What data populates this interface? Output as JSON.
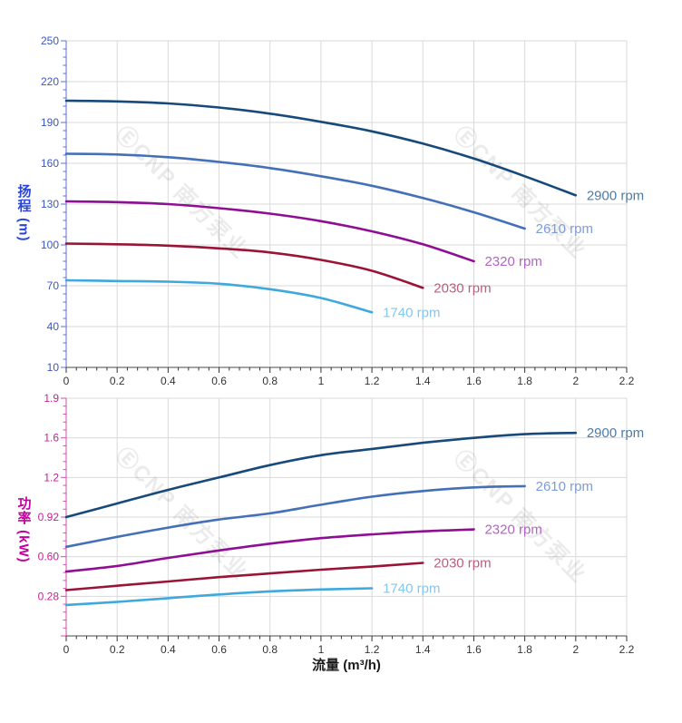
{
  "x_axis": {
    "label": "流量 (m³/h)",
    "min": 0,
    "max": 2.2,
    "major_ticks": [
      {
        "value": 0,
        "label": "0"
      },
      {
        "value": 0.2,
        "label": "0.2"
      },
      {
        "value": 0.4,
        "label": "0.4"
      },
      {
        "value": 0.6,
        "label": "0.6"
      },
      {
        "value": 0.8,
        "label": "0.8"
      },
      {
        "value": 1,
        "label": "1"
      },
      {
        "value": 1.2,
        "label": "1.2"
      },
      {
        "value": 1.4,
        "label": "1.4"
      },
      {
        "value": 1.6,
        "label": "1.6"
      },
      {
        "value": 1.8,
        "label": "1.8"
      },
      {
        "value": 2,
        "label": "2"
      },
      {
        "value": 2.2,
        "label": "2.2"
      }
    ],
    "minor_step": 0.04,
    "axis_color": "#4a4a4a",
    "tick_color": "#333333",
    "tick_label_color": "#333333"
  },
  "watermark": {
    "logo": "Ⓔ",
    "text": "CNP 南方泵业",
    "opacity": 0.1
  },
  "grid_color": "#d9d9d9",
  "chart_data": [
    {
      "type": "line",
      "name": "head-vs-flow",
      "ylabel": "扬程 (m)",
      "ylabel_color": "#2b46d4",
      "axis_color": "#5c6fd0",
      "tick_label_color": "#3a57c4",
      "ylim": [
        10,
        250
      ],
      "y_minor_step": 6,
      "y_major_ticks": [
        {
          "value": 10,
          "label": "10"
        },
        {
          "value": 40,
          "label": "40"
        },
        {
          "value": 70,
          "label": "70"
        },
        {
          "value": 100,
          "label": "100"
        },
        {
          "value": 130,
          "label": "130"
        },
        {
          "value": 160,
          "label": "160"
        },
        {
          "value": 190,
          "label": "190"
        },
        {
          "value": 220,
          "label": "220"
        },
        {
          "value": 250,
          "label": "250"
        }
      ],
      "series": [
        {
          "name": "2900 rpm",
          "color": "#17497a",
          "label_color": "#4d7ca8",
          "x": [
            0,
            0.2,
            0.4,
            0.6,
            0.8,
            1.0,
            1.2,
            1.4,
            1.6,
            1.8,
            2.0
          ],
          "y": [
            206,
            205.5,
            204,
            201,
            196.5,
            190.5,
            183.5,
            174.5,
            163.5,
            150.5,
            136.5
          ]
        },
        {
          "name": "2610 rpm",
          "color": "#4470b8",
          "label_color": "#7e9cd8",
          "x": [
            0,
            0.2,
            0.4,
            0.6,
            0.8,
            1.0,
            1.2,
            1.4,
            1.6,
            1.8
          ],
          "y": [
            167,
            166.5,
            164.5,
            161,
            156.5,
            150.5,
            143.5,
            134.5,
            124,
            112
          ]
        },
        {
          "name": "2320 rpm",
          "color": "#8e0f94",
          "label_color": "#b164c4",
          "x": [
            0,
            0.2,
            0.4,
            0.6,
            0.8,
            1.0,
            1.2,
            1.4,
            1.6
          ],
          "y": [
            132,
            131.5,
            130,
            127,
            123,
            117.5,
            110,
            100.5,
            88
          ]
        },
        {
          "name": "2030 rpm",
          "color": "#9a1535",
          "label_color": "#b8607c",
          "x": [
            0,
            0.2,
            0.4,
            0.6,
            0.8,
            1.0,
            1.2,
            1.4
          ],
          "y": [
            101,
            100.5,
            99.5,
            97.5,
            94.5,
            89,
            81,
            68.5
          ]
        },
        {
          "name": "1740 rpm",
          "color": "#3fa8dd",
          "label_color": "#86c5ec",
          "x": [
            0,
            0.2,
            0.4,
            0.6,
            0.8,
            1.0,
            1.2
          ],
          "y": [
            74,
            73.5,
            73,
            71.5,
            67.5,
            61,
            50.5
          ]
        }
      ]
    },
    {
      "type": "line",
      "name": "power-vs-flow",
      "ylabel": "功率 (kW)",
      "ylabel_color": "#c4009e",
      "axis_color": "#cf4fae",
      "tick_label_color": "#c81e96",
      "ylim": [
        -0.04,
        1.88
      ],
      "y_minor_step": 0.064,
      "y_major_ticks": [
        {
          "value": -0.04,
          "label": ""
        },
        {
          "value": 0.28,
          "label": "0.28"
        },
        {
          "value": 0.6,
          "label": "0.60"
        },
        {
          "value": 0.92,
          "label": "0.92"
        },
        {
          "value": 1.24,
          "label": "1.2"
        },
        {
          "value": 1.56,
          "label": "1.6"
        },
        {
          "value": 1.88,
          "label": "1.9"
        }
      ],
      "series": [
        {
          "name": "2900 rpm",
          "color": "#17497a",
          "label_color": "#4d7ca8",
          "x": [
            0,
            0.2,
            0.4,
            0.6,
            0.8,
            1.0,
            1.2,
            1.4,
            1.6,
            1.8,
            2.0
          ],
          "y": [
            0.92,
            1.03,
            1.14,
            1.24,
            1.34,
            1.42,
            1.47,
            1.52,
            1.56,
            1.59,
            1.6
          ]
        },
        {
          "name": "2610 rpm",
          "color": "#4470b8",
          "label_color": "#7e9cd8",
          "x": [
            0,
            0.2,
            0.4,
            0.6,
            0.8,
            1.0,
            1.2,
            1.4,
            1.6,
            1.8
          ],
          "y": [
            0.68,
            0.76,
            0.835,
            0.9,
            0.95,
            1.02,
            1.085,
            1.13,
            1.16,
            1.17
          ]
        },
        {
          "name": "2320 rpm",
          "color": "#8e0f94",
          "label_color": "#b164c4",
          "x": [
            0,
            0.2,
            0.4,
            0.6,
            0.8,
            1.0,
            1.2,
            1.4,
            1.6
          ],
          "y": [
            0.48,
            0.525,
            0.59,
            0.65,
            0.705,
            0.75,
            0.78,
            0.805,
            0.82
          ]
        },
        {
          "name": "2030 rpm",
          "color": "#9a1535",
          "label_color": "#b8607c",
          "x": [
            0,
            0.2,
            0.4,
            0.6,
            0.8,
            1.0,
            1.2,
            1.4
          ],
          "y": [
            0.33,
            0.365,
            0.4,
            0.435,
            0.465,
            0.495,
            0.52,
            0.55
          ]
        },
        {
          "name": "1740 rpm",
          "color": "#3fa8dd",
          "label_color": "#86c5ec",
          "x": [
            0,
            0.2,
            0.4,
            0.6,
            0.8,
            1.0,
            1.2
          ],
          "y": [
            0.21,
            0.235,
            0.265,
            0.295,
            0.32,
            0.335,
            0.345
          ]
        }
      ]
    }
  ]
}
